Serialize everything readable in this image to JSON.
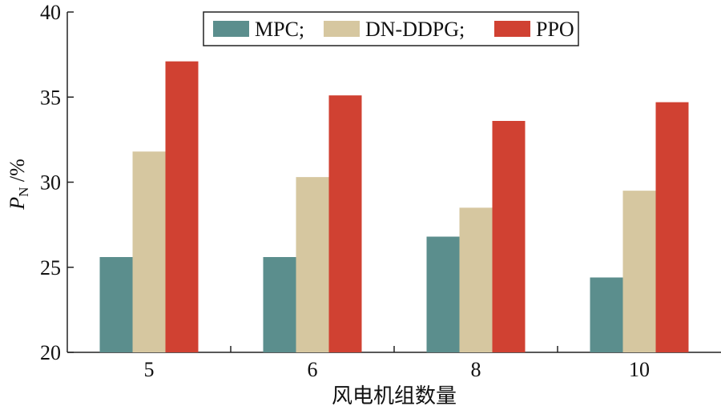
{
  "chart_data": {
    "type": "bar",
    "title": "",
    "xlabel": "风电机组数量",
    "ylabel": {
      "main": "P",
      "sub": "N",
      "suffix": " /%"
    },
    "categories": [
      "5",
      "6",
      "8",
      "10"
    ],
    "ylim": [
      20,
      40
    ],
    "yticks": [
      20,
      25,
      30,
      35,
      40
    ],
    "grid": false,
    "legend_position": "top-center",
    "series": [
      {
        "name": "MPC;",
        "color": "#5b8e8d",
        "values": [
          25.6,
          25.6,
          26.8,
          24.4
        ]
      },
      {
        "name": "DN-DDPG;",
        "color": "#d6c7a0",
        "values": [
          31.8,
          30.3,
          28.5,
          29.5
        ]
      },
      {
        "name": "PPO",
        "color": "#d04132",
        "values": [
          37.1,
          35.1,
          33.6,
          34.7
        ]
      }
    ]
  }
}
